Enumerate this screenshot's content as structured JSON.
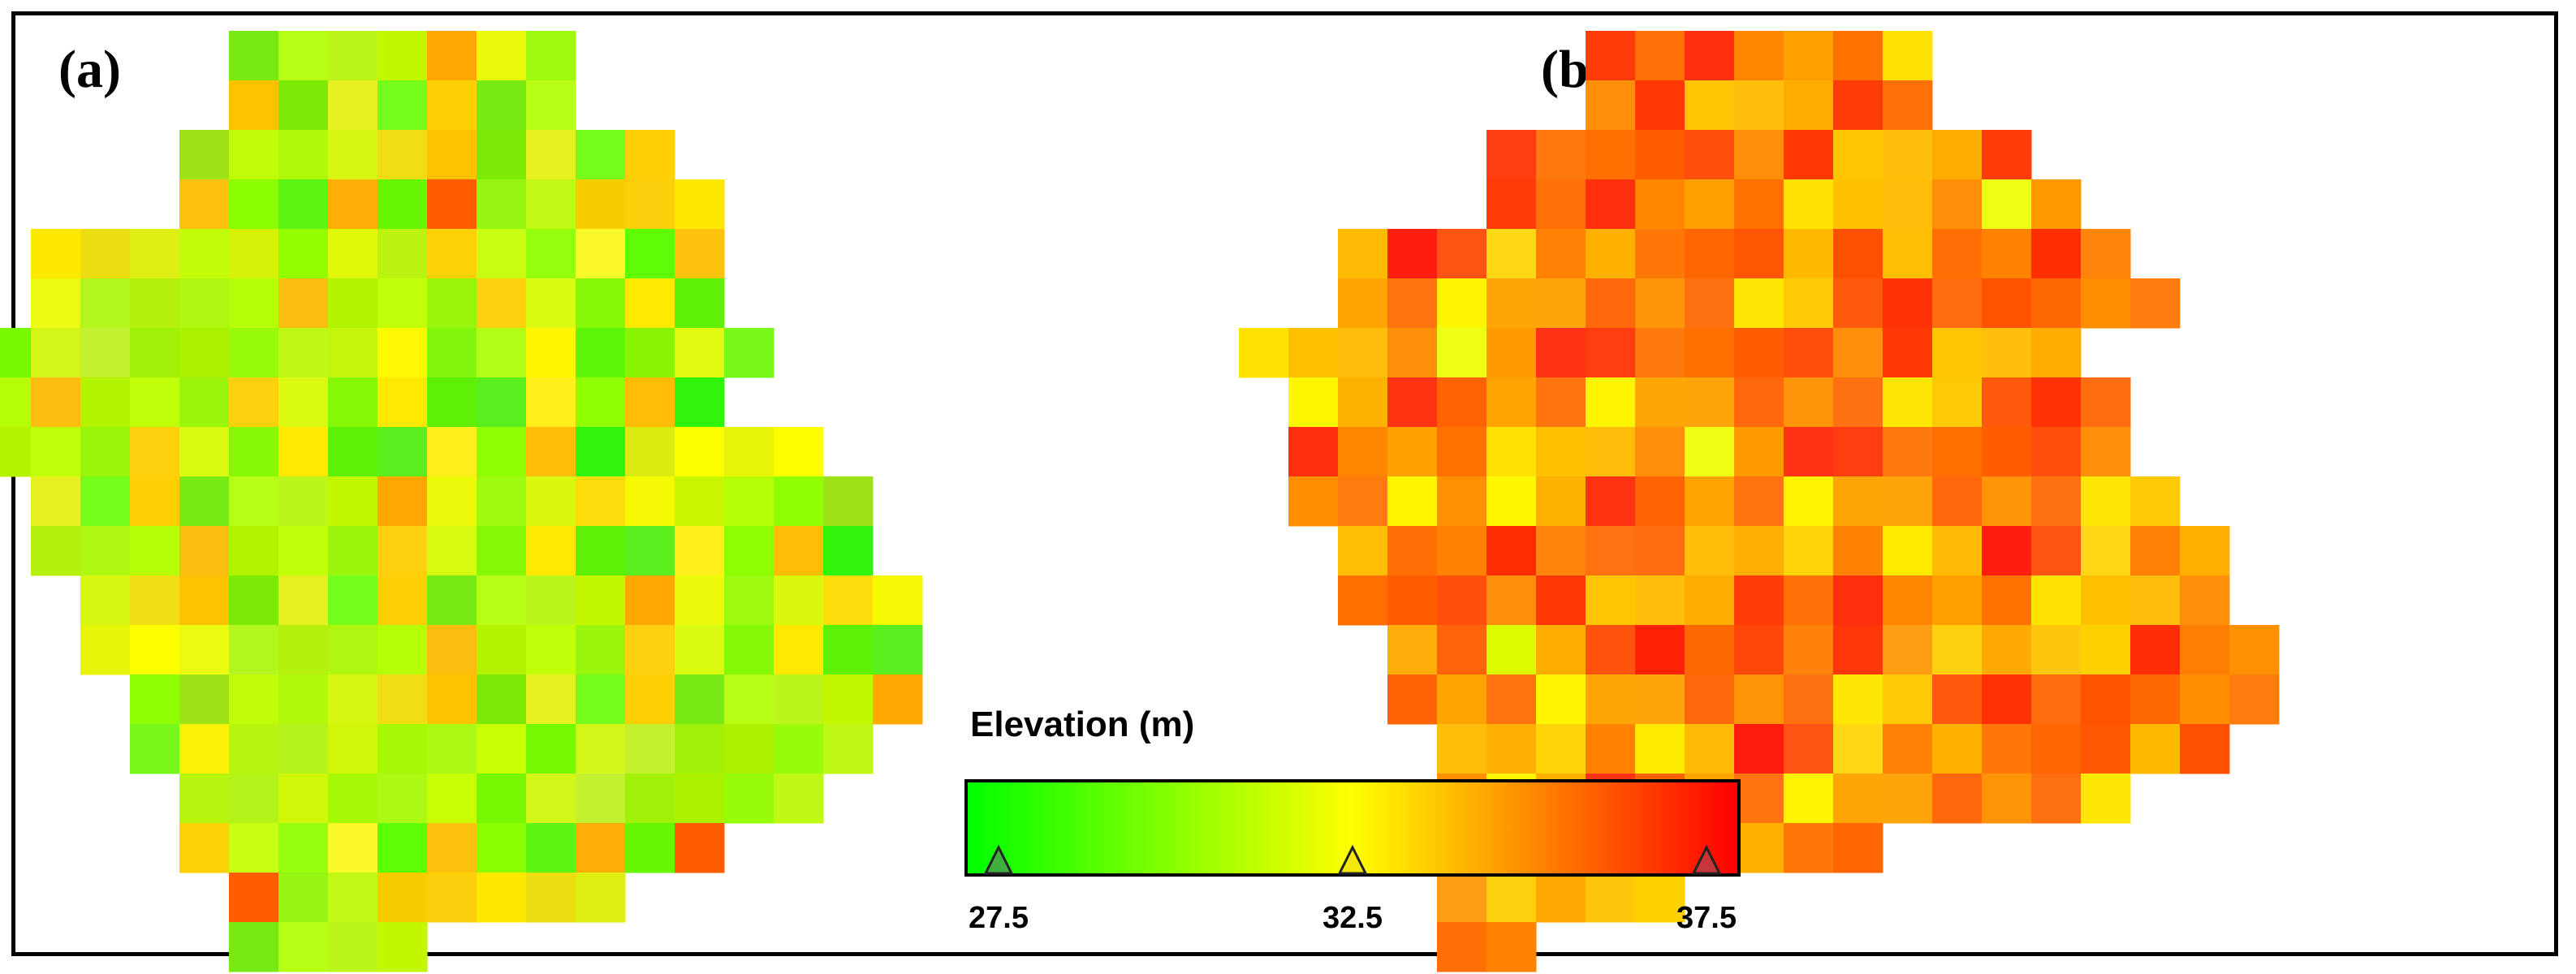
{
  "panels": [
    {
      "label": "(a)",
      "rows": [
        [
          2,
          "LLLLLLL"
        ],
        [
          2,
          "LLLLLLL"
        ],
        [
          1,
          "KKKKKLLLKK"
        ],
        [
          1,
          "KKKKKKKKKKK"
        ],
        [
          -2,
          "ZZYZZZYXXVVVVY"
        ],
        [
          -2,
          "XYXYXWXWWVVVVY"
        ],
        [
          -3,
          "ZYXXYWWVVWVUUXYX"
        ],
        [
          -3,
          "ZYXXWWWWVVVVWXX"
        ],
        [
          -3,
          "YYXWWVVUUVVWXXWWW"
        ],
        [
          -2,
          "ZYXXWWWVVVVVVXXWV"
        ],
        [
          -2,
          "ZXWXWWVVVWVWXXYWW"
        ],
        [
          -1,
          "YXXWVWWXWVVVWXXXW"
        ],
        [
          -1,
          "XXWVVVVWWWVVVXXXW"
        ],
        [
          0,
          "XWVVWWWVVWVWXXXW"
        ],
        [
          0,
          "WWVWWVWWWVVVXXW"
        ],
        [
          1,
          "WVWWVVWWVWWXX"
        ],
        [
          1,
          "WVWVWVWVWWX"
        ],
        [
          2,
          "WVVWVWVW"
        ],
        [
          2,
          "WVVW"
        ]
      ],
      "colors": [
        "#77ea13",
        "#8bfe04",
        "#5ff008",
        "#5ff508",
        "#90ff04",
        "#c3fc09",
        "#b4f00b",
        "#d4f518",
        "#b7fd14",
        "#5cf514",
        "#5aee1e",
        "#88f403",
        "#9ee317",
        "#d5f105",
        "#aff610",
        "#c4f12f",
        "#bbf51b",
        "#ffae05",
        "#fff01c",
        "#e2f914",
        "#c0fc07",
        "#94ff01",
        "#b5fe07",
        "#a0f008",
        "#c2f700",
        "#67f703",
        "#90fe02",
        "#78f81b",
        "#b1f90b",
        "#e2f80a",
        "#fbbe10",
        "#abf100",
        "#ffa702",
        "#ff5d00",
        "#ffbd06",
        "#f9f207",
        "#d7f710",
        "#baf30f",
        "#b3f300",
        "#98fc09",
        "#ebfa08",
        "#96f411",
        "#31f40b",
        "#b7f40e",
        "#f1dd14",
        "#fcd106",
        "#c1ff09",
        "#bff814",
        "#9dfb0f",
        "#c2f915",
        "#daeb11",
        "#b4f319",
        "#fec203",
        "#c8ff12",
        "#9af50c",
        "#c4f50a",
        "#daf80f",
        "#f7cd00",
        "#fcff00",
        "#d1f607",
        "#7ce907",
        "#95ff0e",
        "#ffd00e",
        "#fff803",
        "#ffdc0b",
        "#fbcd0a",
        "#e8f407",
        "#a5f904",
        "#e6ef20",
        "#f9f92a",
        "#dafa11",
        "#85f40d",
        "#f5f901",
        "#ffe800",
        "#fffe01",
        "#acf915",
        "#76fd1b",
        "#5efc06",
        "#86f706",
        "#b0fe17",
        "#c8f500",
        "#edde11",
        "#eafa11",
        "#c8ff04",
        "#ffcf05",
        "#fcc20d",
        "#ffe801",
        "#fff600",
        "#b5fe04",
        "#deee13",
        "#b3f51e",
        "#75f802"
      ]
    },
    {
      "label": "(b)",
      "rows": [
        [
          13,
          "HHHHHHH"
        ],
        [
          13,
          "HHHHHHH"
        ],
        [
          11,
          "IIIIIJJJJJJ"
        ],
        [
          11,
          "IIIIIIIIIIII"
        ],
        [
          8,
          "ZZYZZYYYXXZZZYXX"
        ],
        [
          8,
          "ZYYXYXYXYYXYZZXYY"
        ],
        [
          6,
          "ZYXXWWXWXVVXXWXYY"
        ],
        [
          7,
          "YXXXWWVWWXVVWWXXY"
        ],
        [
          7,
          "ZYXWXWXWWWWWXXXYX"
        ],
        [
          7,
          "ZYXXWWXWVWWXWVXXXY"
        ],
        [
          8,
          "ZYXWWXWWVVVWXXXXYZ"
        ],
        [
          8,
          "YXXWWXWWXWWXXXWYYX"
        ],
        [
          9,
          "YXXWWWXWWXXXWXXYYX"
        ],
        [
          9,
          "YXXWXXXWWXWWXXXYYX"
        ],
        [
          10,
          "YXXWXWWXWXXXXXXY"
        ],
        [
          10,
          "YXXWWXWWXXXXXX"
        ],
        [
          10,
          "YXXWXWXWW"
        ],
        [
          10,
          "YXWXW"
        ],
        [
          10,
          "YX"
        ]
      ],
      "colors": [
        "#ff3b07",
        "#ff2d05",
        "#ff3312",
        "#ff1e0d",
        "#ff3215",
        "#ff530b",
        "#ff590b",
        "#ff8200",
        "#ff7105",
        "#fe7e03",
        "#ff6304",
        "#ff5314",
        "#ff3d10",
        "#ff2204",
        "#ff3105",
        "#ff2e00",
        "#ff2e0c",
        "#ff9100",
        "#ffa400",
        "#ffd815",
        "#ff790e",
        "#fd6901",
        "#ff6d0f",
        "#ff850c",
        "#ff8600",
        "#ff6307",
        "#ff740f",
        "#ff8104",
        "#ff6f00",
        "#ff4708",
        "#ff5301",
        "#ff720f",
        "#ffa000",
        "#ffa802",
        "#fff500",
        "#ffb000",
        "#ff5d00",
        "#ff820d",
        "#ff6700",
        "#fe6c10",
        "#ff7202",
        "#ff9d04",
        "#ffa506",
        "#ff7707",
        "#ff4f0a",
        "#ff3609",
        "#ff8f00",
        "#ffbe0a",
        "#ffe300",
        "#ffb90f",
        "#ffa40b",
        "#ff6603",
        "#ff8f0a",
        "#ff9d15",
        "#ff7c0c",
        "#ffae03",
        "#ffc000",
        "#ff9c0c",
        "#ff690b",
        "#ff5703",
        "#ff3705",
        "#ffd00e",
        "#fff600",
        "#ffd50a",
        "#ffbd0b",
        "#ffae0b",
        "#ff9409",
        "#ffb900",
        "#ffc403",
        "#ffaa02",
        "#ff9003",
        "#ff8100",
        "#ff8e08",
        "#ff640b",
        "#ff7110",
        "#ff4f00",
        "#ffbf0b",
        "#fec60c",
        "#fff700",
        "#ffe900",
        "#eefe14",
        "#dcfc02",
        "#ffe704",
        "#ffbd03",
        "#ffac02",
        "#ffd000",
        "#ffb100",
        "#ffbb04",
        "#ff9900",
        "#ffad00",
        "#ffc908",
        "#ff6f04"
      ]
    }
  ],
  "legend": {
    "title": "Elevation (m)",
    "ticks": [
      {
        "value": 27.5,
        "label": "27.5",
        "color": "#3fb040"
      },
      {
        "value": 32.5,
        "label": "32.5",
        "color": "#f4e80a"
      },
      {
        "value": 37.5,
        "label": "37.5",
        "color": "#c8363a"
      }
    ],
    "min": 27.5,
    "max": 37.5
  }
}
